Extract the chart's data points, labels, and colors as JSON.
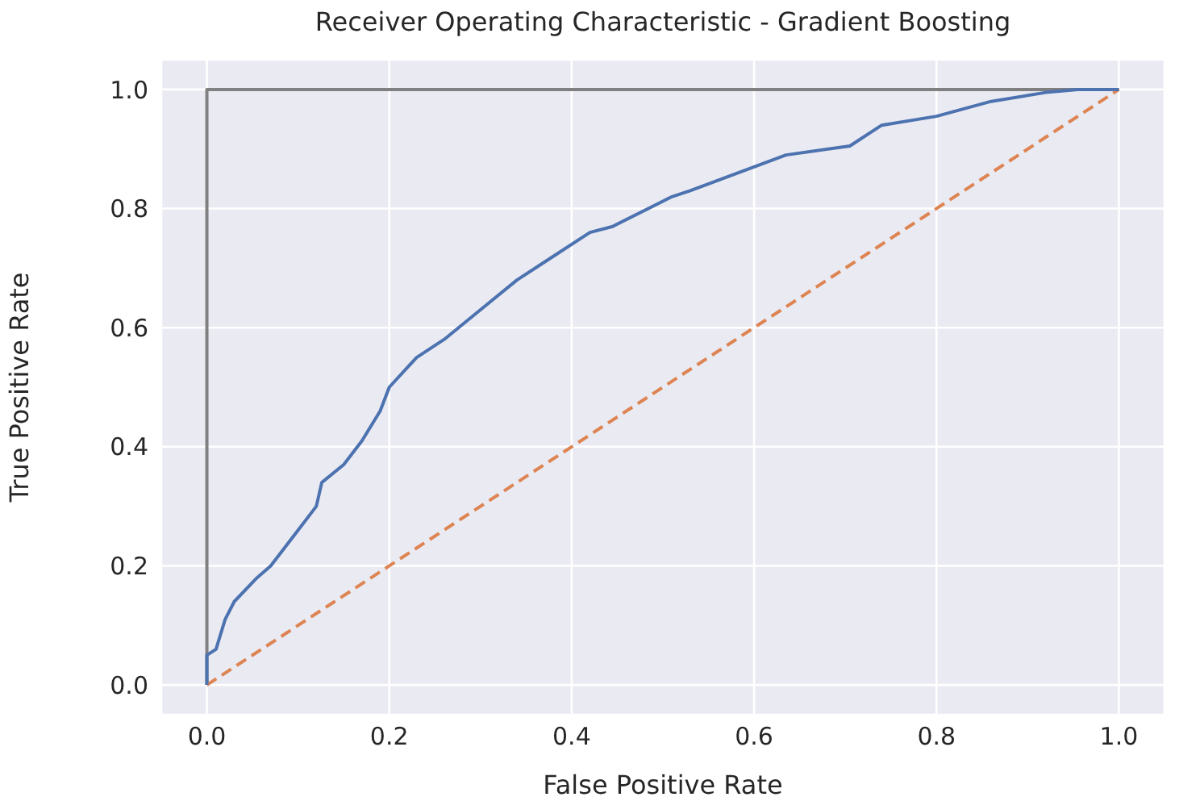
{
  "chart_data": {
    "type": "line",
    "title": "Receiver Operating Characteristic - Gradient Boosting",
    "xlabel": "False Positive Rate",
    "ylabel": "True Positive Rate",
    "xlim": [
      -0.05,
      1.05
    ],
    "ylim": [
      -0.05,
      1.05
    ],
    "xticks": [
      {
        "value": 0,
        "label": "0.0"
      },
      {
        "value": 0.2,
        "label": "0.2"
      },
      {
        "value": 0.4,
        "label": "0.4"
      },
      {
        "value": 0.6,
        "label": "0.6"
      },
      {
        "value": 0.8,
        "label": "0.8"
      },
      {
        "value": 1,
        "label": "1.0"
      }
    ],
    "yticks": [
      {
        "value": 0,
        "label": "0.0"
      },
      {
        "value": 0.2,
        "label": "0.2"
      },
      {
        "value": 0.4,
        "label": "0.4"
      },
      {
        "value": 0.6,
        "label": "0.6"
      },
      {
        "value": 0.8,
        "label": "0.8"
      },
      {
        "value": 1,
        "label": "1.0"
      }
    ],
    "grid": true,
    "marker": "none",
    "series": [
      {
        "color": "#808080",
        "line_style": "solid",
        "x": [
          0,
          0,
          1
        ],
        "values": [
          0,
          1,
          1
        ]
      },
      {
        "color": "#dd8452",
        "line_style": "dashed",
        "x": [
          0,
          1
        ],
        "values": [
          0,
          1
        ]
      },
      {
        "color": "#4c72b0",
        "line_style": "solid",
        "x": [
          0,
          0,
          0.01,
          0.02,
          0.03,
          0.055,
          0.07,
          0.1,
          0.12,
          0.126,
          0.15,
          0.17,
          0.19,
          0.2,
          0.23,
          0.26,
          0.3,
          0.34,
          0.37,
          0.42,
          0.445,
          0.51,
          0.53,
          0.6,
          0.635,
          0.705,
          0.74,
          0.8,
          0.86,
          0.92,
          0.955,
          1
        ],
        "values": [
          0,
          0.05,
          0.06,
          0.11,
          0.14,
          0.18,
          0.2,
          0.26,
          0.3,
          0.34,
          0.37,
          0.41,
          0.46,
          0.5,
          0.55,
          0.58,
          0.63,
          0.68,
          0.71,
          0.76,
          0.77,
          0.82,
          0.83,
          0.87,
          0.89,
          0.905,
          0.94,
          0.955,
          0.98,
          0.995,
          1,
          1
        ]
      }
    ]
  }
}
